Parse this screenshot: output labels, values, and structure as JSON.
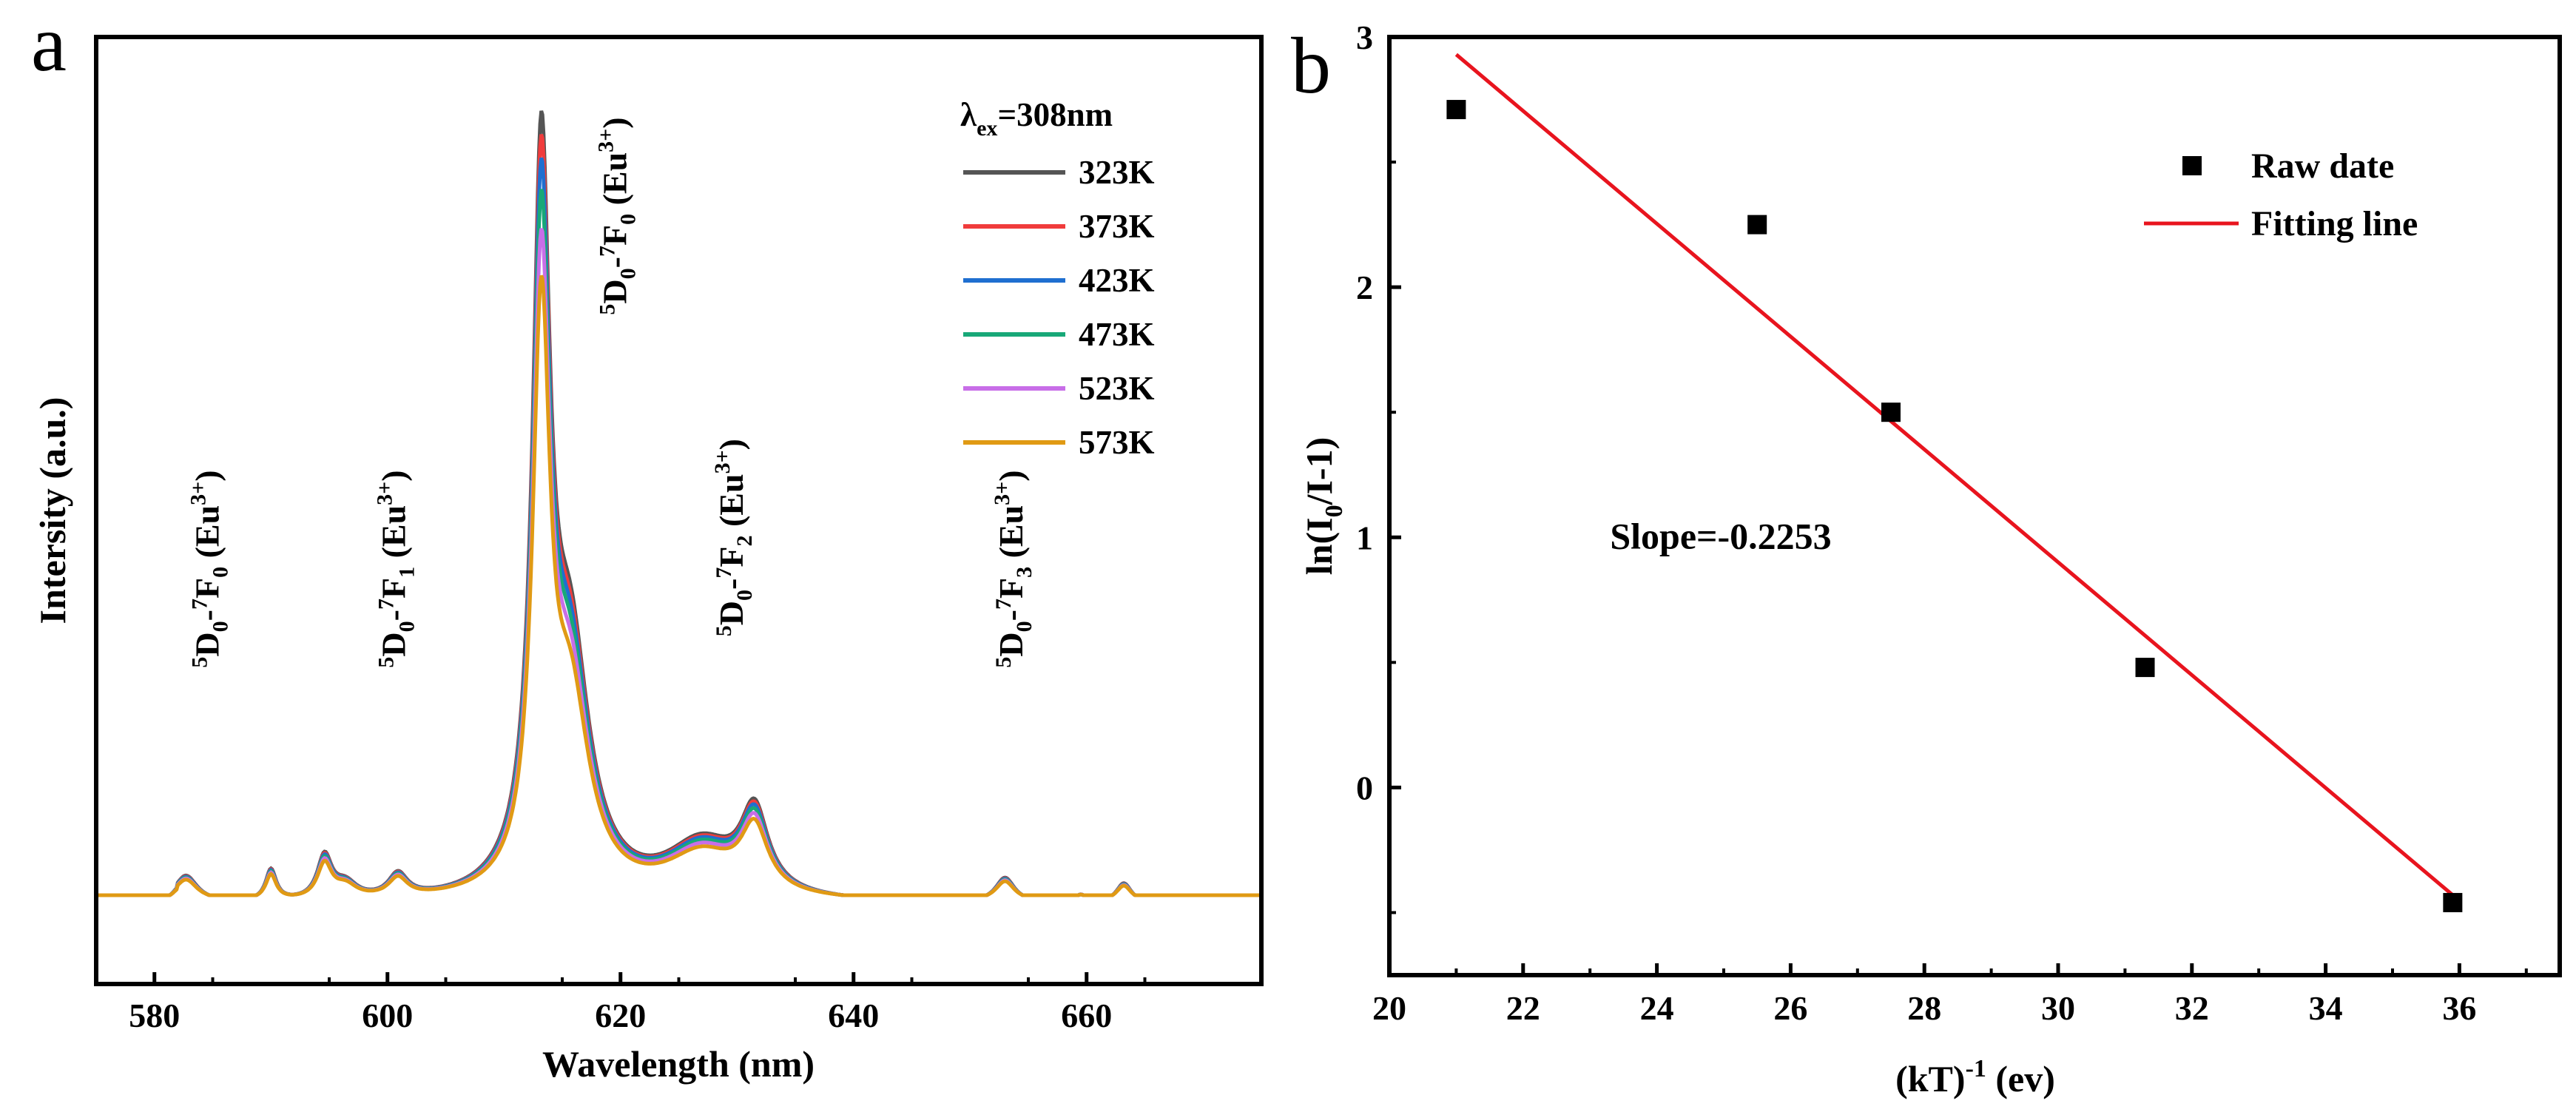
{
  "chart_data": [
    {
      "id": "a",
      "type": "line",
      "panel_label": "a",
      "xlabel": "Wavelength (nm)",
      "ylabel": "Intersity (a.u.)",
      "xlim": [
        575,
        675
      ],
      "ylim": [
        0,
        1
      ],
      "x_ticks": [
        580,
        600,
        620,
        640,
        660
      ],
      "y_ticks": [],
      "legend_title": {
        "main": "λ",
        "sub": "ex",
        "rest": "=308nm"
      },
      "legend_position": "top-right",
      "peaks": [
        {
          "center": 582.7,
          "width": 1.2,
          "height": 0.035
        },
        {
          "center": 590.0,
          "width": 0.55,
          "height": 0.04
        },
        {
          "center": 594.6,
          "width": 0.75,
          "height": 0.055
        },
        {
          "center": 596.4,
          "width": 1.2,
          "height": 0.02
        },
        {
          "center": 600.9,
          "width": 1.0,
          "height": 0.03
        },
        {
          "center": 613.2,
          "width": 0.9,
          "height": 0.89
        },
        {
          "center": 615.7,
          "width": 2.0,
          "height": 0.3
        },
        {
          "center": 627.0,
          "width": 3.8,
          "height": 0.07
        },
        {
          "center": 631.5,
          "width": 1.4,
          "height": 0.1
        },
        {
          "center": 653.0,
          "width": 1.0,
          "height": 0.032
        },
        {
          "center": 659.5,
          "width": 0.6,
          "height": 0.01
        },
        {
          "center": 663.2,
          "width": 0.8,
          "height": 0.026
        }
      ],
      "series": [
        {
          "name": "323K",
          "color": "#555555",
          "scale": 1.0
        },
        {
          "name": "373K",
          "color": "#f03c3c",
          "scale": 0.97
        },
        {
          "name": "423K",
          "color": "#1f6fd0",
          "scale": 0.94
        },
        {
          "name": "473K",
          "color": "#18a878",
          "scale": 0.9
        },
        {
          "name": "523K",
          "color": "#c86ee8",
          "scale": 0.85
        },
        {
          "name": "573K",
          "color": "#e09a14",
          "scale": 0.79
        }
      ],
      "annotations": [
        {
          "upper": "5",
          "base": "D",
          "lower": "0",
          "dash": "-",
          "upper2": "7",
          "base2": "F",
          "lower2": "0",
          "ion": " (Eu",
          "charge": "3+",
          "close": ")",
          "x": 585.5,
          "y": 0.29
        },
        {
          "upper": "5",
          "base": "D",
          "lower": "0",
          "dash": "-",
          "upper2": "7",
          "base2": "F",
          "lower2": "1",
          "ion": " (Eu",
          "charge": "3+",
          "close": ")",
          "x": 601.5,
          "y": 0.29
        },
        {
          "upper": "5",
          "base": "D",
          "lower": "0",
          "dash": "-",
          "upper2": "7",
          "base2": "F",
          "lower2": "0",
          "ion": " (Eu",
          "charge": "3+",
          "close": ")",
          "x": 620.5,
          "y": 0.74
        },
        {
          "upper": "5",
          "base": "D",
          "lower": "0",
          "dash": "-",
          "upper2": "7",
          "base2": "F",
          "lower2": "2",
          "ion": " (Eu",
          "charge": "3+",
          "close": ")",
          "x": 630.5,
          "y": 0.33
        },
        {
          "upper": "5",
          "base": "D",
          "lower": "0",
          "dash": "-",
          "upper2": "7",
          "base2": "F",
          "lower2": "3",
          "ion": " (Eu",
          "charge": "3+",
          "close": ")",
          "x": 654.5,
          "y": 0.29
        }
      ]
    },
    {
      "id": "b",
      "type": "scatter",
      "panel_label": "b",
      "xlabel": {
        "base": "(kT)",
        "sup": "-1",
        "rest": " (ev)"
      },
      "ylabel": {
        "base": "ln(I",
        "sub": "0",
        "rest": "/I-1)"
      },
      "xlim": [
        20,
        37.5
      ],
      "ylim": [
        -0.75,
        3.0
      ],
      "x_ticks": [
        20,
        22,
        24,
        26,
        28,
        30,
        32,
        34,
        36
      ],
      "y_ticks": [
        0,
        1,
        2,
        3
      ],
      "y_minor_ticks": [
        -0.5,
        0.5,
        1.5,
        2.5
      ],
      "series": [
        {
          "name": "Raw date",
          "color": "#000000",
          "x": [
            21.0,
            25.5,
            27.5,
            31.3,
            35.9
          ],
          "y": [
            2.71,
            2.25,
            1.5,
            0.48,
            -0.46
          ]
        },
        {
          "name": "Fitting line",
          "color": "#e8141e",
          "x": [
            21.0,
            35.9
          ],
          "y": [
            2.93,
            -0.43
          ]
        }
      ],
      "annotation": {
        "text": "Slope=-0.2253",
        "x": 23.3,
        "y": 1.0
      },
      "legend_position": "top-right"
    }
  ]
}
